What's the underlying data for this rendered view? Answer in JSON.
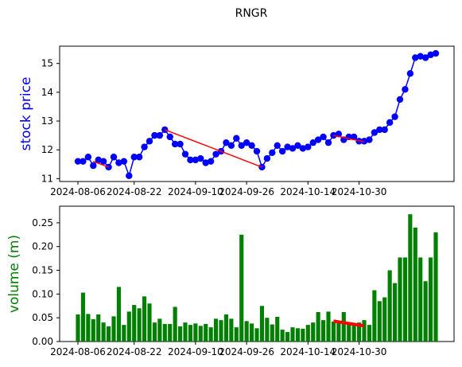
{
  "chart_data": {
    "title": "RNGR",
    "x_ticks": [
      "2024-08-06",
      "2024-08-22",
      "2024-09-10",
      "2024-09-26",
      "2024-10-14",
      "2024-10-30"
    ],
    "price_panel": {
      "type": "line",
      "ylabel": "stock price",
      "ylabel_color": "#0000ff",
      "ylim": [
        10.9,
        15.6
      ],
      "yticks": [
        "11",
        "12",
        "13",
        "14",
        "15"
      ],
      "series": [
        {
          "color": "#0000ff",
          "values": [
            11.6,
            11.6,
            11.75,
            11.45,
            11.65,
            11.6,
            11.4,
            11.75,
            11.55,
            11.6,
            11.1,
            11.75,
            11.75,
            12.1,
            12.3,
            12.5,
            12.5,
            12.7,
            12.45,
            12.2,
            12.2,
            11.85,
            11.65,
            11.65,
            11.7,
            11.55,
            11.6,
            11.85,
            11.95,
            12.25,
            12.15,
            12.4,
            12.15,
            12.25,
            12.15,
            11.95,
            11.4,
            11.7,
            11.9,
            12.15,
            11.95,
            12.1,
            12.05,
            12.15,
            12.05,
            12.1,
            12.25,
            12.35,
            12.45,
            12.25,
            12.5,
            12.55,
            12.35,
            12.45,
            12.45,
            12.3,
            12.3,
            12.35,
            12.6,
            12.7,
            12.7,
            12.95,
            13.15,
            13.75,
            14.1,
            14.65,
            15.2,
            15.25,
            15.2,
            15.3,
            15.35
          ]
        }
      ],
      "trend_segments": [
        {
          "from": 3,
          "to": 6,
          "y0": 11.6,
          "y1": 11.4
        },
        {
          "from": 17,
          "to": 36,
          "y0": 12.7,
          "y1": 11.4
        },
        {
          "from": 50,
          "to": 56,
          "y0": 12.5,
          "y1": 12.28
        }
      ],
      "trend_color": "#ff0000"
    },
    "volume_panel": {
      "type": "bar",
      "ylabel": "volume (m)",
      "ylabel_color": "#008000",
      "ylim": [
        0,
        0.285
      ],
      "yticks": [
        "0.00",
        "0.05",
        "0.10",
        "0.15",
        "0.20",
        "0.25"
      ],
      "bar_color": "#008000",
      "values": [
        0.057,
        0.103,
        0.058,
        0.047,
        0.057,
        0.04,
        0.032,
        0.053,
        0.115,
        0.035,
        0.063,
        0.077,
        0.07,
        0.095,
        0.08,
        0.04,
        0.048,
        0.037,
        0.037,
        0.073,
        0.032,
        0.04,
        0.035,
        0.038,
        0.033,
        0.037,
        0.03,
        0.048,
        0.045,
        0.057,
        0.048,
        0.03,
        0.225,
        0.043,
        0.038,
        0.028,
        0.075,
        0.05,
        0.036,
        0.052,
        0.025,
        0.02,
        0.03,
        0.028,
        0.027,
        0.035,
        0.04,
        0.062,
        0.045,
        0.063,
        0.042,
        0.04,
        0.062,
        0.04,
        0.035,
        0.04,
        0.045,
        0.035,
        0.108,
        0.085,
        0.093,
        0.15,
        0.123,
        0.177,
        0.177,
        0.268,
        0.24,
        0.177,
        0.127,
        0.177,
        0.23
      ],
      "trend_segments": [
        {
          "from": 50,
          "to": 56,
          "y0": 0.043,
          "y1": 0.033
        }
      ],
      "trend_color": "#ff0000"
    }
  }
}
